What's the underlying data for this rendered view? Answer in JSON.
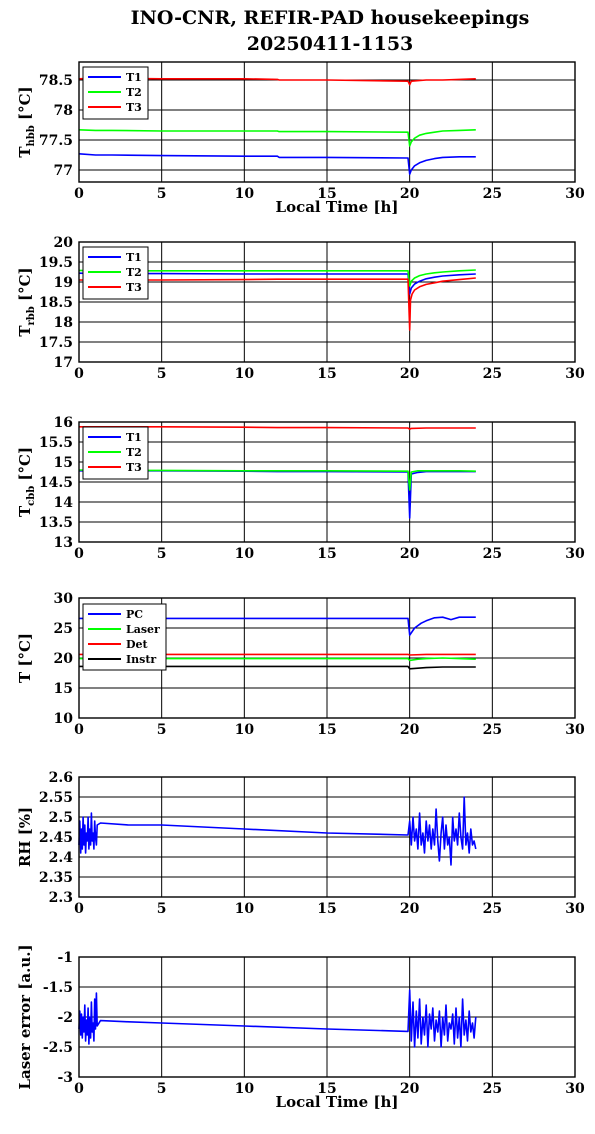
{
  "title_line1": "INO-CNR, REFIR-PAD housekeepings",
  "title_line2": "20250411-1153",
  "chart_data": [
    {
      "type": "line",
      "ylabel_main": "T",
      "ylabel_sub": "hbb",
      "ylabel_unit": "[°C]",
      "xlabel": "Local Time [h]",
      "xlim": [
        0,
        30
      ],
      "ylim": [
        76.8,
        78.8
      ],
      "xticks": [
        0,
        5,
        10,
        15,
        20,
        25,
        30
      ],
      "yticks": [
        77,
        77.5,
        78,
        78.5
      ],
      "grid": true,
      "legend_position": "top-left",
      "series": [
        {
          "name": "T1",
          "color": "#0000ff",
          "x": [
            0,
            1,
            2,
            5,
            10,
            12,
            12.1,
            15,
            19.9,
            20,
            20.1,
            20.3,
            20.6,
            21,
            21.5,
            22,
            23,
            24
          ],
          "y": [
            77.27,
            77.25,
            77.25,
            77.24,
            77.23,
            77.23,
            77.21,
            77.21,
            77.2,
            76.93,
            77.0,
            77.07,
            77.12,
            77.16,
            77.19,
            77.21,
            77.22,
            77.22
          ]
        },
        {
          "name": "T2",
          "color": "#00ff00",
          "x": [
            0,
            1,
            2,
            5,
            10,
            12,
            12.1,
            15,
            19.9,
            20,
            20.1,
            20.3,
            20.6,
            21,
            21.5,
            22,
            23,
            24
          ],
          "y": [
            77.67,
            77.66,
            77.66,
            77.65,
            77.65,
            77.65,
            77.64,
            77.64,
            77.63,
            77.4,
            77.47,
            77.53,
            77.58,
            77.61,
            77.63,
            77.65,
            77.66,
            77.67
          ]
        },
        {
          "name": "T3",
          "color": "#ff0000",
          "x": [
            0,
            1,
            2,
            5,
            10,
            12,
            12.1,
            15,
            19.9,
            20,
            20.1,
            21,
            22,
            23,
            24
          ],
          "y": [
            78.52,
            78.53,
            78.53,
            78.52,
            78.52,
            78.51,
            78.5,
            78.5,
            78.48,
            78.42,
            78.48,
            78.5,
            78.5,
            78.51,
            78.52
          ]
        }
      ]
    },
    {
      "type": "line",
      "ylabel_main": "T",
      "ylabel_sub": "rbb",
      "ylabel_unit": "[°C]",
      "xlabel": "",
      "xlim": [
        0,
        30
      ],
      "ylim": [
        17,
        20
      ],
      "xticks": [
        0,
        5,
        10,
        15,
        20,
        25,
        30
      ],
      "yticks": [
        17,
        17.5,
        18,
        18.5,
        19,
        19.5,
        20
      ],
      "grid": true,
      "legend_position": "top-left",
      "series": [
        {
          "name": "T1",
          "color": "#0000ff",
          "x": [
            0,
            1,
            2,
            5,
            10,
            12,
            15,
            19.9,
            20,
            20.1,
            20.3,
            20.6,
            21,
            21.5,
            22,
            23,
            24
          ],
          "y": [
            19.22,
            19.21,
            19.21,
            19.21,
            19.2,
            19.2,
            19.2,
            19.2,
            18.7,
            18.85,
            18.95,
            19.02,
            19.08,
            19.12,
            19.15,
            19.18,
            19.2
          ]
        },
        {
          "name": "T2",
          "color": "#00ff00",
          "x": [
            0,
            1,
            2,
            5,
            10,
            12,
            15,
            19.9,
            20,
            20.1,
            20.3,
            20.6,
            21,
            21.5,
            22,
            23,
            24
          ],
          "y": [
            19.29,
            19.28,
            19.28,
            19.28,
            19.28,
            19.28,
            19.28,
            19.28,
            18.9,
            19.02,
            19.1,
            19.16,
            19.2,
            19.23,
            19.25,
            19.28,
            19.3
          ]
        },
        {
          "name": "T3",
          "color": "#ff0000",
          "x": [
            0,
            1,
            2,
            5,
            10,
            12,
            15,
            19.9,
            20,
            20.05,
            20.15,
            20.3,
            20.6,
            21,
            21.5,
            22,
            23,
            24
          ],
          "y": [
            19.05,
            19.05,
            19.05,
            19.05,
            19.06,
            19.07,
            19.07,
            19.07,
            17.8,
            18.55,
            18.7,
            18.8,
            18.88,
            18.94,
            18.98,
            19.02,
            19.06,
            19.1
          ]
        }
      ]
    },
    {
      "type": "line",
      "ylabel_main": "T",
      "ylabel_sub": "cbb",
      "ylabel_unit": "[°C]",
      "xlabel": "",
      "xlim": [
        0,
        30
      ],
      "ylim": [
        13,
        16
      ],
      "xticks": [
        0,
        5,
        10,
        15,
        20,
        25,
        30
      ],
      "yticks": [
        13,
        13.5,
        14,
        14.5,
        15,
        15.5,
        16
      ],
      "grid": true,
      "legend_position": "top-left",
      "series": [
        {
          "name": "T1",
          "color": "#0000ff",
          "x": [
            0,
            1,
            2,
            5,
            10,
            12,
            15,
            19.9,
            20,
            20.1,
            20.5,
            21,
            22,
            23,
            24
          ],
          "y": [
            14.78,
            14.78,
            14.78,
            14.78,
            14.77,
            14.76,
            14.76,
            14.75,
            13.6,
            14.7,
            14.74,
            14.76,
            14.76,
            14.76,
            14.76
          ]
        },
        {
          "name": "T2",
          "color": "#00ff00",
          "x": [
            0,
            1,
            2,
            5,
            10,
            12,
            15,
            19.9,
            20,
            20.1,
            20.5,
            21,
            22,
            23,
            24
          ],
          "y": [
            14.8,
            14.79,
            14.79,
            14.79,
            14.78,
            14.78,
            14.78,
            14.77,
            14.3,
            14.75,
            14.78,
            14.78,
            14.78,
            14.78,
            14.77
          ]
        },
        {
          "name": "T3",
          "color": "#ff0000",
          "x": [
            0,
            1,
            2,
            5,
            10,
            12,
            15,
            19.9,
            20,
            20.1,
            21,
            22,
            23,
            24
          ],
          "y": [
            15.88,
            15.88,
            15.88,
            15.88,
            15.87,
            15.86,
            15.86,
            15.85,
            15.82,
            15.84,
            15.85,
            15.85,
            15.85,
            15.85
          ]
        }
      ]
    },
    {
      "type": "line",
      "ylabel_main": "T",
      "ylabel_sub": "",
      "ylabel_unit": "[°C]",
      "xlabel": "",
      "xlim": [
        0,
        30
      ],
      "ylim": [
        10,
        30
      ],
      "xticks": [
        0,
        5,
        10,
        15,
        20,
        25,
        30
      ],
      "yticks": [
        10,
        15,
        20,
        25,
        30
      ],
      "grid": true,
      "legend_position": "top-left",
      "series": [
        {
          "name": "PC",
          "color": "#0000ff",
          "x": [
            0,
            1,
            5,
            10,
            15,
            19.9,
            20,
            20.3,
            20.7,
            21,
            21.5,
            22,
            22.5,
            23,
            24
          ],
          "y": [
            26.6,
            26.6,
            26.6,
            26.6,
            26.6,
            26.6,
            23.8,
            25.0,
            25.8,
            26.2,
            26.7,
            26.8,
            26.4,
            26.8,
            26.8
          ]
        },
        {
          "name": "Laser",
          "color": "#00ff00",
          "x": [
            0,
            1,
            5,
            10,
            15,
            19.9,
            20,
            20.5,
            21,
            22,
            23,
            24
          ],
          "y": [
            19.9,
            19.9,
            19.9,
            19.9,
            19.9,
            19.9,
            19.6,
            19.8,
            19.9,
            20.0,
            19.9,
            19.8
          ]
        },
        {
          "name": "Det",
          "color": "#ff0000",
          "x": [
            0,
            1,
            5,
            10,
            15,
            19.9,
            20,
            21,
            22,
            23,
            24
          ],
          "y": [
            20.6,
            20.6,
            20.6,
            20.6,
            20.6,
            20.6,
            20.5,
            20.6,
            20.6,
            20.6,
            20.6
          ]
        },
        {
          "name": "Instr",
          "color": "#000000",
          "x": [
            0,
            1,
            5,
            10,
            15,
            19.9,
            20,
            21,
            22,
            23,
            24
          ],
          "y": [
            18.6,
            18.6,
            18.6,
            18.6,
            18.6,
            18.6,
            18.2,
            18.4,
            18.5,
            18.5,
            18.5
          ]
        }
      ]
    },
    {
      "type": "line",
      "ylabel_main": "RH [%]",
      "ylabel_sub": "",
      "ylabel_unit": "",
      "xlabel": "",
      "xlim": [
        0,
        30
      ],
      "ylim": [
        2.3,
        2.6
      ],
      "xticks": [
        0,
        5,
        10,
        15,
        20,
        25,
        30
      ],
      "yticks": [
        2.3,
        2.35,
        2.4,
        2.45,
        2.5,
        2.55,
        2.6
      ],
      "grid": true,
      "legend_position": "none",
      "series": [
        {
          "name": "",
          "color": "#0000ff",
          "x": [
            0,
            0.05,
            0.1,
            0.15,
            0.2,
            0.25,
            0.3,
            0.35,
            0.4,
            0.45,
            0.5,
            0.55,
            0.6,
            0.65,
            0.7,
            0.75,
            0.8,
            0.85,
            0.9,
            0.95,
            1.0,
            1.05,
            1.1,
            1.3,
            3,
            5,
            10,
            15,
            19.9,
            20.0,
            20.1,
            20.2,
            20.3,
            20.4,
            20.5,
            20.6,
            20.7,
            20.8,
            20.9,
            21.0,
            21.1,
            21.2,
            21.3,
            21.4,
            21.5,
            21.6,
            21.7,
            21.8,
            21.9,
            22.0,
            22.1,
            22.2,
            22.3,
            22.4,
            22.5,
            22.6,
            22.7,
            22.8,
            22.9,
            23.0,
            23.1,
            23.2,
            23.3,
            23.4,
            23.5,
            23.6,
            23.7,
            23.8,
            23.9,
            24.0
          ],
          "y": [
            2.43,
            2.49,
            2.41,
            2.47,
            2.42,
            2.5,
            2.43,
            2.48,
            2.41,
            2.46,
            2.44,
            2.5,
            2.42,
            2.47,
            2.43,
            2.51,
            2.44,
            2.46,
            2.42,
            2.49,
            2.45,
            2.43,
            2.48,
            2.485,
            2.48,
            2.48,
            2.47,
            2.46,
            2.455,
            2.49,
            2.43,
            2.5,
            2.44,
            2.47,
            2.42,
            2.51,
            2.43,
            2.46,
            2.41,
            2.49,
            2.44,
            2.48,
            2.42,
            2.47,
            2.43,
            2.52,
            2.44,
            2.39,
            2.46,
            2.5,
            2.42,
            2.48,
            2.43,
            2.45,
            2.38,
            2.5,
            2.44,
            2.47,
            2.43,
            2.51,
            2.45,
            2.42,
            2.55,
            2.43,
            2.46,
            2.41,
            2.47,
            2.43,
            2.44,
            2.42
          ]
        }
      ]
    },
    {
      "type": "line",
      "ylabel_main": "Laser error [a.u.]",
      "ylabel_sub": "",
      "ylabel_unit": "",
      "xlabel": "Local Time [h]",
      "xlim": [
        0,
        30
      ],
      "ylim": [
        -3,
        -1
      ],
      "xticks": [
        0,
        5,
        10,
        15,
        20,
        25,
        30
      ],
      "yticks": [
        -3,
        -2.5,
        -2,
        -1.5,
        -1
      ],
      "grid": true,
      "legend_position": "none",
      "series": [
        {
          "name": "",
          "color": "#0000ff",
          "x": [
            0,
            0.05,
            0.1,
            0.15,
            0.2,
            0.25,
            0.3,
            0.35,
            0.4,
            0.45,
            0.5,
            0.55,
            0.6,
            0.65,
            0.7,
            0.75,
            0.8,
            0.85,
            0.9,
            0.95,
            1.0,
            1.05,
            1.1,
            1.3,
            3,
            5,
            10,
            15,
            19.9,
            20.0,
            20.1,
            20.2,
            20.3,
            20.4,
            20.5,
            20.6,
            20.7,
            20.8,
            20.9,
            21.0,
            21.1,
            21.2,
            21.3,
            21.4,
            21.5,
            21.6,
            21.7,
            21.8,
            21.9,
            22.0,
            22.1,
            22.2,
            22.3,
            22.4,
            22.5,
            22.6,
            22.7,
            22.8,
            22.9,
            23.0,
            23.1,
            23.2,
            23.3,
            23.4,
            23.5,
            23.6,
            23.7,
            23.8,
            23.9,
            24.0
          ],
          "y": [
            -2.2,
            -1.9,
            -2.3,
            -1.95,
            -2.35,
            -2.0,
            -2.25,
            -1.8,
            -2.4,
            -2.05,
            -2.3,
            -1.85,
            -2.45,
            -2.0,
            -2.35,
            -1.75,
            -2.25,
            -2.1,
            -2.4,
            -1.7,
            -2.2,
            -1.6,
            -2.15,
            -2.06,
            -2.08,
            -2.1,
            -2.15,
            -2.2,
            -2.24,
            -1.55,
            -2.4,
            -1.75,
            -2.5,
            -1.9,
            -2.35,
            -1.7,
            -2.45,
            -2.0,
            -2.3,
            -1.8,
            -2.5,
            -1.95,
            -2.2,
            -1.85,
            -2.4,
            -2.05,
            -2.25,
            -1.9,
            -2.5,
            -2.0,
            -2.3,
            -1.8,
            -2.4,
            -2.1,
            -2.2,
            -1.95,
            -2.45,
            -1.85,
            -2.35,
            -2.0,
            -2.5,
            -1.7,
            -2.3,
            -2.05,
            -2.4,
            -1.9,
            -2.25,
            -2.1,
            -2.35,
            -2.0
          ]
        }
      ]
    }
  ]
}
